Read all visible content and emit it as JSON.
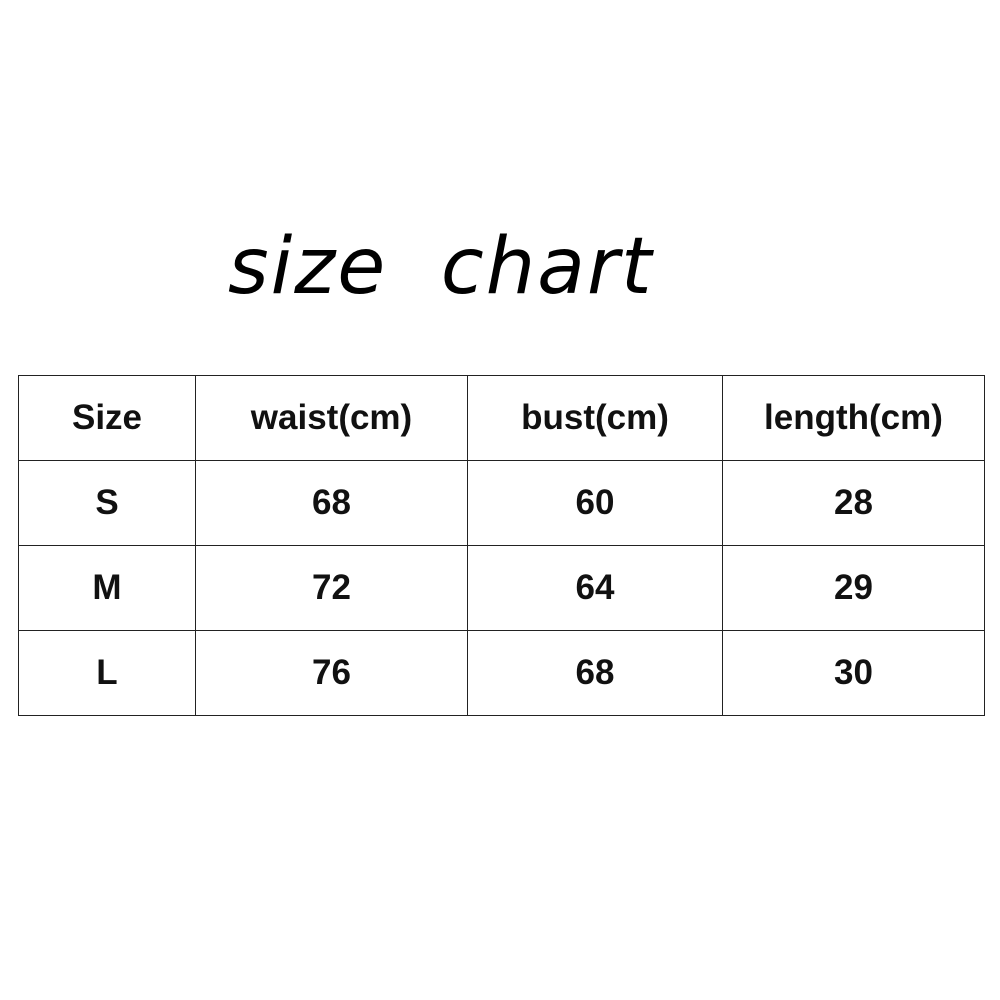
{
  "title": "size  chart",
  "table": {
    "headers": [
      "Size",
      "waist(cm)",
      "bust(cm)",
      "length(cm)"
    ],
    "rows": [
      [
        "S",
        "68",
        "60",
        "28"
      ],
      [
        "M",
        "72",
        "64",
        "29"
      ],
      [
        "L",
        "76",
        "68",
        "30"
      ]
    ]
  }
}
